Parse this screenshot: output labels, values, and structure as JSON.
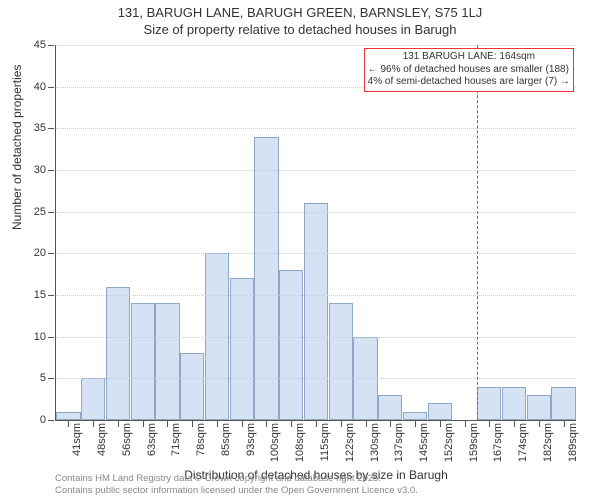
{
  "title_main": "131, BARUGH LANE, BARUGH GREEN, BARNSLEY, S75 1LJ",
  "title_sub": "Size of property relative to detached houses in Barugh",
  "y_axis_label": "Number of detached properties",
  "x_axis_label": "Distribution of detached houses by size in Barugh",
  "chart": {
    "type": "histogram",
    "y_max": 45,
    "y_tick_step": 5,
    "categories": [
      "41sqm",
      "48sqm",
      "56sqm",
      "63sqm",
      "71sqm",
      "78sqm",
      "85sqm",
      "93sqm",
      "100sqm",
      "108sqm",
      "115sqm",
      "122sqm",
      "130sqm",
      "137sqm",
      "145sqm",
      "152sqm",
      "159sqm",
      "167sqm",
      "174sqm",
      "182sqm",
      "189sqm"
    ],
    "values": [
      1,
      5,
      16,
      14,
      14,
      8,
      20,
      17,
      34,
      18,
      26,
      14,
      10,
      3,
      1,
      2,
      0,
      4,
      4,
      3,
      4
    ],
    "bar_fill": "#d4e2f4",
    "bar_border": "#8fa8c8",
    "grid_color": "#cccccc",
    "axis_color": "#555555",
    "background": "#ffffff",
    "marker_color": "#ee3333",
    "marker_value_index": 17
  },
  "annotation": {
    "line1": "131 BARUGH LANE: 164sqm",
    "line2": "← 96% of detached houses are smaller (188)",
    "line3": "4% of semi-detached houses are larger (7) →"
  },
  "footer_line1": "Contains HM Land Registry data © Crown copyright and database right 2025.",
  "footer_line2": "Contains public sector information licensed under the Open Government Licence v3.0."
}
